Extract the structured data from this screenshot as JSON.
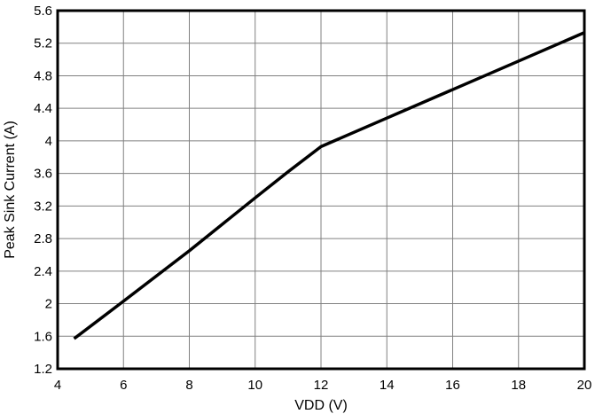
{
  "chart_data": {
    "type": "line",
    "title": "",
    "xlabel": "VDD (V)",
    "ylabel": "Peak Sink Current (A)",
    "xlim": [
      4,
      20
    ],
    "ylim": [
      1.2,
      5.6
    ],
    "xticks": [
      "4",
      "6",
      "8",
      "10",
      "12",
      "14",
      "16",
      "18",
      "20"
    ],
    "yticks": [
      "1.2",
      "1.6",
      "2",
      "2.4",
      "2.8",
      "3.2",
      "3.6",
      "4",
      "4.4",
      "4.8",
      "5.2",
      "5.6"
    ],
    "grid": true,
    "series": [
      {
        "color": "#000000",
        "x": [
          4.5,
          6,
          8,
          10,
          11,
          12,
          14,
          16,
          18,
          20
        ],
        "y": [
          1.57,
          2.03,
          2.65,
          3.3,
          3.62,
          3.93,
          4.28,
          4.63,
          4.98,
          5.33
        ]
      }
    ]
  }
}
